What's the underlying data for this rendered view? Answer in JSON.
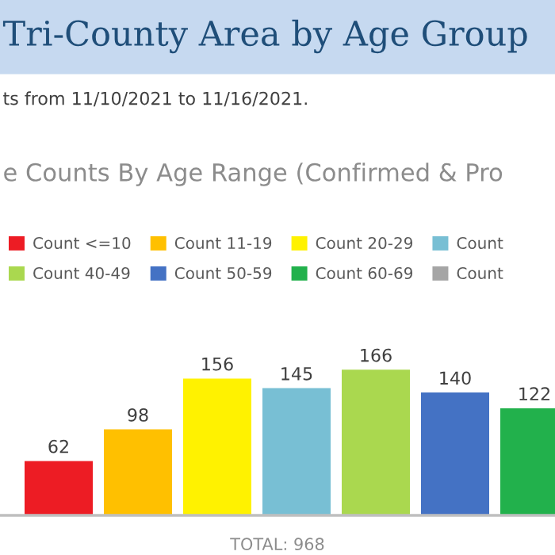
{
  "chart_data": {
    "type": "bar",
    "title": "Tri-County Area by Age Group",
    "subtitle": "ts from 11/10/2021 to 11/16/2021.",
    "annotations": [
      "e Counts By Age Range (Confirmed & Pro",
      "TOTAL: 968"
    ],
    "categories": [
      null
    ],
    "data_labels": true,
    "legend": "top",
    "series": [
      {
        "name": "Count <=10",
        "color": "#ed1c24",
        "values": [
          62
        ]
      },
      {
        "name": "Count 11-19",
        "color": "#ffc000",
        "values": [
          98
        ]
      },
      {
        "name": "Count 20-29",
        "color": "#fff200",
        "values": [
          156
        ]
      },
      {
        "name": "Count",
        "color": "#78bfd4",
        "values": [
          145
        ]
      },
      {
        "name": "Count 40-49",
        "color": "#aad84f",
        "values": [
          166
        ]
      },
      {
        "name": "Count 50-59",
        "color": "#4472c4",
        "values": [
          140
        ]
      },
      {
        "name": "Count 60-69",
        "color": "#22b14c",
        "values": [
          122
        ]
      },
      {
        "name": "Count",
        "color": "#a5a5a5",
        "values": [
          null
        ]
      }
    ]
  }
}
